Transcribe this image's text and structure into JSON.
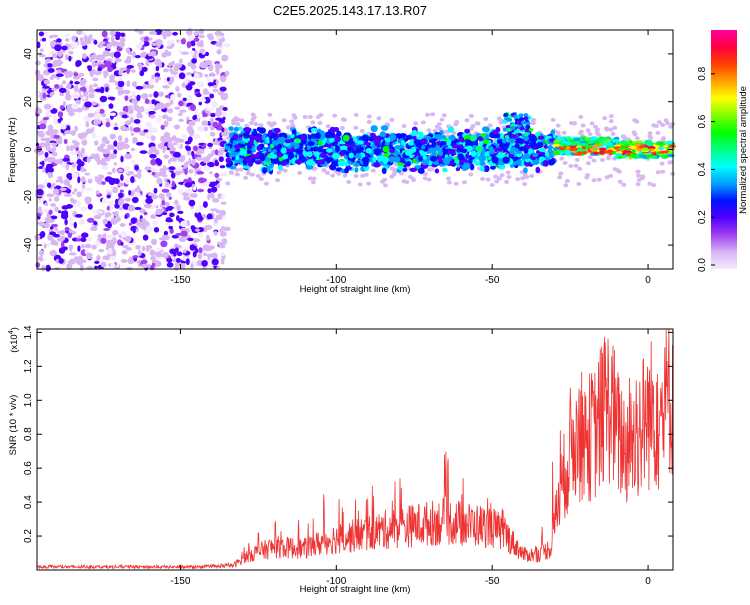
{
  "chart_data": [
    {
      "type": "heatmap",
      "title": "C2E5.2025.143.17.13.R07",
      "xlabel": "Height of straight line (km)",
      "ylabel": "Frequency (Hz)",
      "xlim": [
        -196,
        8
      ],
      "ylim": [
        -50,
        50
      ],
      "x_ticks": [
        -150,
        -100,
        -50,
        0
      ],
      "y_ticks": [
        -40,
        -20,
        0,
        20,
        40
      ],
      "colorbar": {
        "label": "Normalized spectral amplitude",
        "range": [
          0,
          1
        ],
        "ticks": [
          "0.0",
          "0.2",
          "0.4",
          "0.6",
          "0.8"
        ],
        "colors": [
          "#f4eaff",
          "#d8b6f4",
          "#a040f0",
          "#5000ff",
          "#0010ff",
          "#00a0ff",
          "#00ffff",
          "#00ff80",
          "#00ff00",
          "#80ff00",
          "#ffff00",
          "#ffa000",
          "#ff4000",
          "#ff0040",
          "#ff00a0"
        ]
      },
      "regions": [
        {
          "x_range": [
            -196,
            -135
          ],
          "freq_range": [
            -50,
            50
          ],
          "amplitude": "0.05-0.2 scattered noise"
        },
        {
          "x_range": [
            -135,
            -30
          ],
          "freq_range": [
            -8,
            8
          ],
          "amplitude": "0.2-0.5 band"
        },
        {
          "x_range": [
            -30,
            8
          ],
          "freq_range": [
            -3,
            4
          ],
          "amplitude": "0.5-0.95 band"
        }
      ]
    },
    {
      "type": "line",
      "ylabel": "SNR (10 * v/v)",
      "xlabel": "Height of straight line (km)",
      "y_multiplier": "(x10",
      "y_multiplier_exp": "4",
      "y_multiplier_close": ")",
      "xlim": [
        -196,
        8
      ],
      "ylim": [
        0,
        1.42
      ],
      "x_ticks": [
        -150,
        -100,
        -50,
        0
      ],
      "y_ticks": [
        "0.2",
        "0.4",
        "0.6",
        "0.8",
        "1.0",
        "1.2",
        "1.4"
      ],
      "series": [
        {
          "color": "#ee3333",
          "x": [
            -196,
            -180,
            -160,
            -140,
            -133,
            -128,
            -120,
            -110,
            -102,
            -95,
            -88,
            -80,
            -72,
            -65,
            -58,
            -50,
            -45,
            -40,
            -35,
            -31,
            -29,
            -27,
            -25,
            -23,
            -20,
            -17,
            -14,
            -12,
            -10,
            -7,
            -4,
            -2,
            0,
            2,
            4,
            6,
            8
          ],
          "y": [
            0.02,
            0.02,
            0.02,
            0.02,
            0.03,
            0.1,
            0.15,
            0.14,
            0.2,
            0.22,
            0.25,
            0.28,
            0.3,
            0.32,
            0.3,
            0.28,
            0.22,
            0.1,
            0.1,
            0.15,
            0.45,
            0.6,
            0.8,
            0.9,
            0.85,
            0.9,
            1.05,
            1.1,
            0.9,
            0.8,
            0.85,
            0.95,
            1.0,
            1.05,
            0.95,
            1.1,
            1.2
          ],
          "max": [
            0.03,
            0.03,
            0.03,
            0.03,
            0.05,
            0.2,
            0.3,
            0.35,
            0.5,
            0.45,
            0.5,
            0.55,
            0.6,
            0.72,
            0.5,
            0.45,
            0.35,
            0.2,
            0.15,
            0.6,
            1.1,
            1.15,
            1.15,
            1.0,
            1.1,
            1.25,
            1.42,
            1.3,
            1.15,
            1.1,
            1.35,
            1.3,
            1.2,
            1.25,
            1.1,
            1.42,
            1.4
          ]
        }
      ]
    }
  ]
}
